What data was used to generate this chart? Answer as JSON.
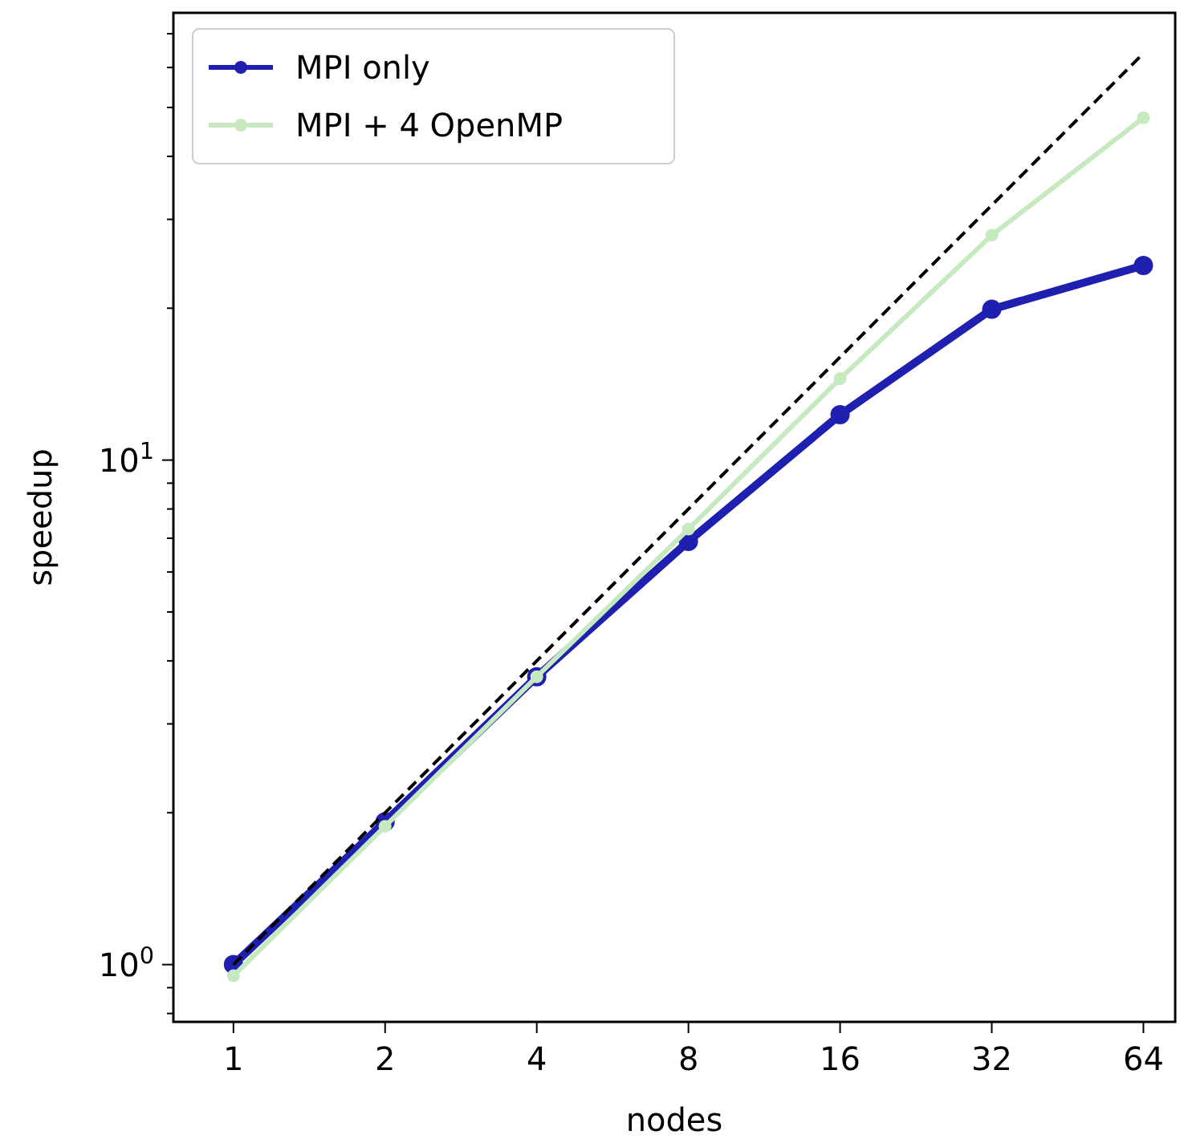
{
  "chart_data": {
    "type": "line",
    "xlabel": "nodes",
    "ylabel": "speedup",
    "log": "xy",
    "legend": "top left",
    "x": [
      1,
      2,
      4,
      8,
      16,
      32,
      64
    ],
    "xlim": [
      0.76,
      74
    ],
    "xticks": [
      1,
      2,
      4,
      8,
      16,
      32,
      64
    ],
    "ylim": [
      0.77,
      77
    ],
    "yticks": [
      {
        "value": 0.8,
        "label": null
      },
      {
        "value": 0.9,
        "label": null
      },
      {
        "value": 1,
        "label": "10$^{0}$"
      },
      {
        "value": 2,
        "label": null
      },
      {
        "value": 3,
        "label": null
      },
      {
        "value": 4,
        "label": null
      },
      {
        "value": 5,
        "label": null
      },
      {
        "value": 6,
        "label": null
      },
      {
        "value": 7,
        "label": null
      },
      {
        "value": 8,
        "label": null
      },
      {
        "value": 9,
        "label": null
      },
      {
        "value": 10,
        "label": "10$^{1}$"
      },
      {
        "value": 20,
        "label": null
      },
      {
        "value": 30,
        "label": null
      },
      {
        "value": 40,
        "label": null
      },
      {
        "value": 50,
        "label": null
      },
      {
        "value": 60,
        "label": null
      },
      {
        "value": 70,
        "label": null
      }
    ],
    "series": [
      {
        "name": "MPI only",
        "color": "#1f1fb0",
        "values": [
          1.0,
          1.92,
          3.72,
          6.9,
          12.3,
          19.9,
          24.3
        ],
        "marker": "circle",
        "line_style": "solid"
      },
      {
        "name": "MPI + 4 OpenMP",
        "color": "#c7e9c0",
        "values": [
          0.95,
          1.88,
          3.72,
          7.3,
          14.5,
          27.9,
          47.7
        ],
        "marker": "circle",
        "line_style": "solid"
      },
      {
        "color": "#000000",
        "x": [
          1,
          64
        ],
        "values": [
          1,
          64
        ],
        "marker": "none",
        "line_style": "dashed"
      }
    ]
  }
}
